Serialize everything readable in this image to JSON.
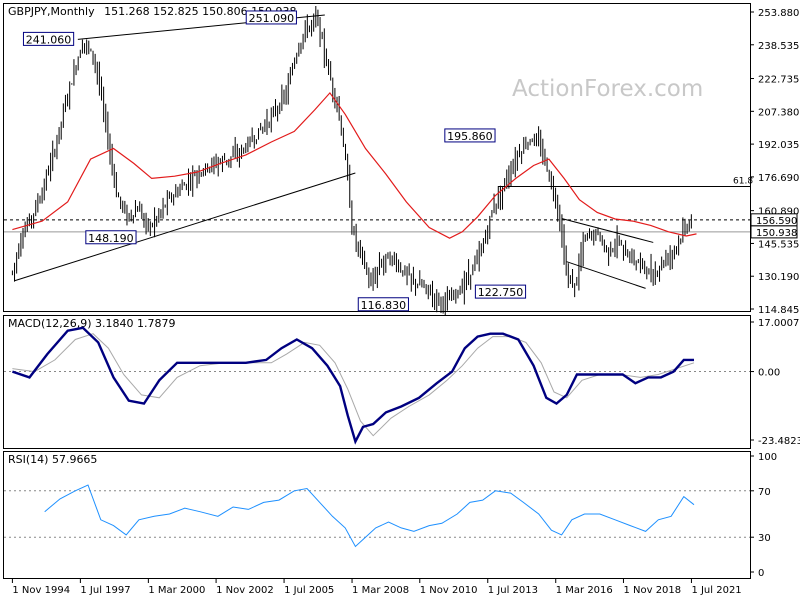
{
  "header": {
    "symbol": "GBPJPY,Monthly",
    "ohlc": "151.268 152.825 150.806 150.938"
  },
  "watermark": "ActionForex.com",
  "colors": {
    "candle": "#000000",
    "ma": "#e21b1b",
    "macd_main": "#000080",
    "macd_signal": "#a9a9a9",
    "rsi": "#1e90ff",
    "label_border": "#000080",
    "line": "#000000"
  },
  "chart_data": [
    {
      "type": "line",
      "title": "GBPJPY,Monthly",
      "ylim": [
        114.845,
        253.88
      ],
      "y_ticks": [
        "253.880",
        "238.535",
        "222.735",
        "207.380",
        "192.035",
        "176.690",
        "160.890",
        "145.535",
        "130.190",
        "114.845"
      ],
      "x_ticks": [
        "1 Nov 1994",
        "1 Jul 1997",
        "1 Mar 2000",
        "1 Nov 2002",
        "1 Jul 2005",
        "1 Mar 2008",
        "1 Nov 2010",
        "1 Jul 2013",
        "1 Mar 2016",
        "1 Nov 2018",
        "1 Jul 2021"
      ],
      "x_tick_years": [
        1994.83,
        1997.5,
        2000.17,
        2002.83,
        2005.5,
        2008.17,
        2010.83,
        2013.5,
        2016.17,
        2018.83,
        2021.5
      ],
      "xlim": [
        1994.5,
        2023.8
      ],
      "series": [
        {
          "x": [
            1994.83,
            1995.2,
            1995.6,
            1996.0,
            1996.5,
            1997.0,
            1997.6,
            1998.1,
            1998.5,
            1998.9,
            1999.3,
            1999.8,
            2000.2,
            2000.9,
            2001.5,
            2002.0,
            2002.6,
            2003.2,
            2003.8,
            2004.4,
            2005.0,
            2005.6,
            2005.9,
            2006.3,
            2006.8,
            2007.2,
            2007.6,
            2007.9,
            2008.2,
            2008.6,
            2008.9,
            2009.2,
            2009.6,
            2010.0,
            2010.5,
            2011.0,
            2011.5,
            2011.9,
            2012.3,
            2012.8,
            2013.2,
            2013.7,
            2014.2,
            2014.7,
            2015.2,
            2015.6,
            2015.9,
            2016.3,
            2016.6,
            2016.9,
            2017.3,
            2017.8,
            2018.2,
            2018.6,
            2019.0,
            2019.5,
            2020.0,
            2020.3,
            2020.6,
            2020.9,
            2021.2,
            2021.5
          ],
          "values": [
            132,
            150,
            158,
            170,
            190,
            215,
            241,
            230,
            200,
            170,
            158,
            162,
            152,
            165,
            172,
            178,
            182,
            185,
            188,
            196,
            205,
            216,
            232,
            245,
            251,
            228,
            210,
            186,
            150,
            138,
            125,
            135,
            140,
            135,
            128,
            125,
            120,
            118,
            122,
            132,
            140,
            162,
            175,
            188,
            195,
            190,
            178,
            160,
            130,
            125,
            148,
            150,
            142,
            146,
            140,
            136,
            130,
            136,
            140,
            144,
            152,
            157
          ]
        },
        {
          "name": "MA",
          "x": [
            1994.83,
            1996.0,
            1997.0,
            1997.9,
            1998.8,
            1999.6,
            2000.3,
            2001.2,
            2002.1,
            2003.0,
            2004.0,
            2005.0,
            2005.9,
            2006.7,
            2007.3,
            2007.9,
            2008.7,
            2009.5,
            2010.3,
            2011.2,
            2012.0,
            2012.5,
            2013.1,
            2013.8,
            2014.6,
            2015.3,
            2015.9,
            2016.5,
            2017.1,
            2017.8,
            2018.5,
            2019.2,
            2019.9,
            2020.6,
            2021.3,
            2021.7
          ],
          "values": [
            152,
            156,
            165,
            185,
            190,
            183,
            176,
            177,
            179,
            183,
            187,
            193,
            198,
            208,
            216,
            206,
            190,
            178,
            165,
            153,
            148,
            151,
            158,
            168,
            176,
            182,
            185,
            176,
            166,
            160,
            157,
            156,
            154,
            151,
            149,
            150
          ]
        }
      ],
      "annotations": [
        "241.060",
        "251.090",
        "148.190",
        "116.830",
        "195.860",
        "122.750",
        "156.590",
        "150.938",
        "61.8"
      ],
      "hlines": [
        156.59,
        150.938,
        172.2
      ]
    },
    {
      "type": "line",
      "title": "MACD(12,26,9) 3.1840 1.7879",
      "ylim": [
        -23.4823,
        17.0007
      ],
      "y_ticks": [
        "17.0007",
        "0.00",
        "-23.4823"
      ],
      "series": [
        {
          "name": "MACD",
          "x": [
            1994.83,
            1995.5,
            1996.2,
            1997.0,
            1997.6,
            1998.2,
            1998.8,
            1999.4,
            2000.0,
            2000.6,
            2001.3,
            2002.0,
            2003.0,
            2004.0,
            2004.8,
            2005.4,
            2006.0,
            2006.6,
            2007.2,
            2007.7,
            2008.0,
            2008.3,
            2008.6,
            2009.0,
            2009.5,
            2010.1,
            2010.8,
            2011.5,
            2012.1,
            2012.6,
            2013.1,
            2013.6,
            2014.1,
            2014.7,
            2015.3,
            2015.8,
            2016.2,
            2016.6,
            2017.0,
            2017.5,
            2018.2,
            2018.8,
            2019.3,
            2019.8,
            2020.3,
            2020.8,
            2021.2,
            2021.6
          ],
          "values": [
            0,
            -2,
            6,
            14,
            15,
            10,
            -2,
            -10,
            -11,
            -3,
            3,
            3,
            3,
            3,
            4,
            8,
            11,
            8,
            2,
            -5,
            -15,
            -24,
            -19,
            -18,
            -14,
            -12,
            -9,
            -4,
            0,
            8,
            12,
            13,
            13,
            11,
            2,
            -9,
            -11,
            -8,
            -1,
            -1,
            -1,
            -1,
            -4,
            -2,
            -2,
            0,
            4,
            4
          ]
        },
        {
          "name": "Signal",
          "x": [
            1994.83,
            1995.7,
            1996.5,
            1997.3,
            1998.0,
            1998.6,
            1999.2,
            1999.9,
            2000.6,
            2001.3,
            2002.2,
            2003.2,
            2004.2,
            2005.0,
            2005.6,
            2006.3,
            2006.9,
            2007.5,
            2008.0,
            2008.5,
            2009.0,
            2009.7,
            2010.4,
            2011.2,
            2011.9,
            2012.5,
            2013.1,
            2013.7,
            2014.4,
            2015.0,
            2015.6,
            2016.1,
            2016.6,
            2017.2,
            2017.9,
            2018.7,
            2019.5,
            2020.2,
            2020.9,
            2021.6
          ],
          "values": [
            1,
            0,
            4,
            11,
            13,
            8,
            -1,
            -8,
            -9,
            -2,
            2,
            3,
            3,
            3,
            6,
            10,
            9,
            3,
            -6,
            -17,
            -22,
            -16,
            -12,
            -8,
            -3,
            2,
            8,
            12,
            12,
            10,
            3,
            -7,
            -9,
            -3,
            -1,
            -1,
            -2,
            -1,
            1,
            3
          ]
        }
      ]
    },
    {
      "type": "line",
      "title": "RSI(14) 57.9665",
      "ylim": [
        0,
        100
      ],
      "y_ticks": [
        "100",
        "70",
        "30",
        "0"
      ],
      "series": [
        {
          "x": [
            1996.1,
            1996.7,
            1997.3,
            1997.8,
            1998.3,
            1998.8,
            1999.3,
            1999.8,
            2000.4,
            2001.0,
            2001.6,
            2002.2,
            2002.9,
            2003.5,
            2004.1,
            2004.7,
            2005.3,
            2005.9,
            2006.4,
            2006.9,
            2007.4,
            2007.9,
            2008.3,
            2008.7,
            2009.1,
            2009.6,
            2010.1,
            2010.6,
            2011.2,
            2011.7,
            2012.3,
            2012.8,
            2013.3,
            2013.8,
            2014.4,
            2014.9,
            2015.5,
            2016.0,
            2016.4,
            2016.8,
            2017.3,
            2017.9,
            2018.5,
            2019.1,
            2019.7,
            2020.2,
            2020.7,
            2021.2,
            2021.6
          ],
          "values": [
            52,
            63,
            70,
            75,
            45,
            40,
            32,
            45,
            48,
            50,
            55,
            52,
            48,
            56,
            54,
            60,
            62,
            70,
            72,
            60,
            48,
            38,
            22,
            30,
            38,
            43,
            38,
            35,
            40,
            42,
            50,
            60,
            62,
            70,
            68,
            60,
            50,
            36,
            32,
            45,
            50,
            50,
            45,
            40,
            35,
            45,
            48,
            65,
            58
          ]
        }
      ]
    }
  ]
}
